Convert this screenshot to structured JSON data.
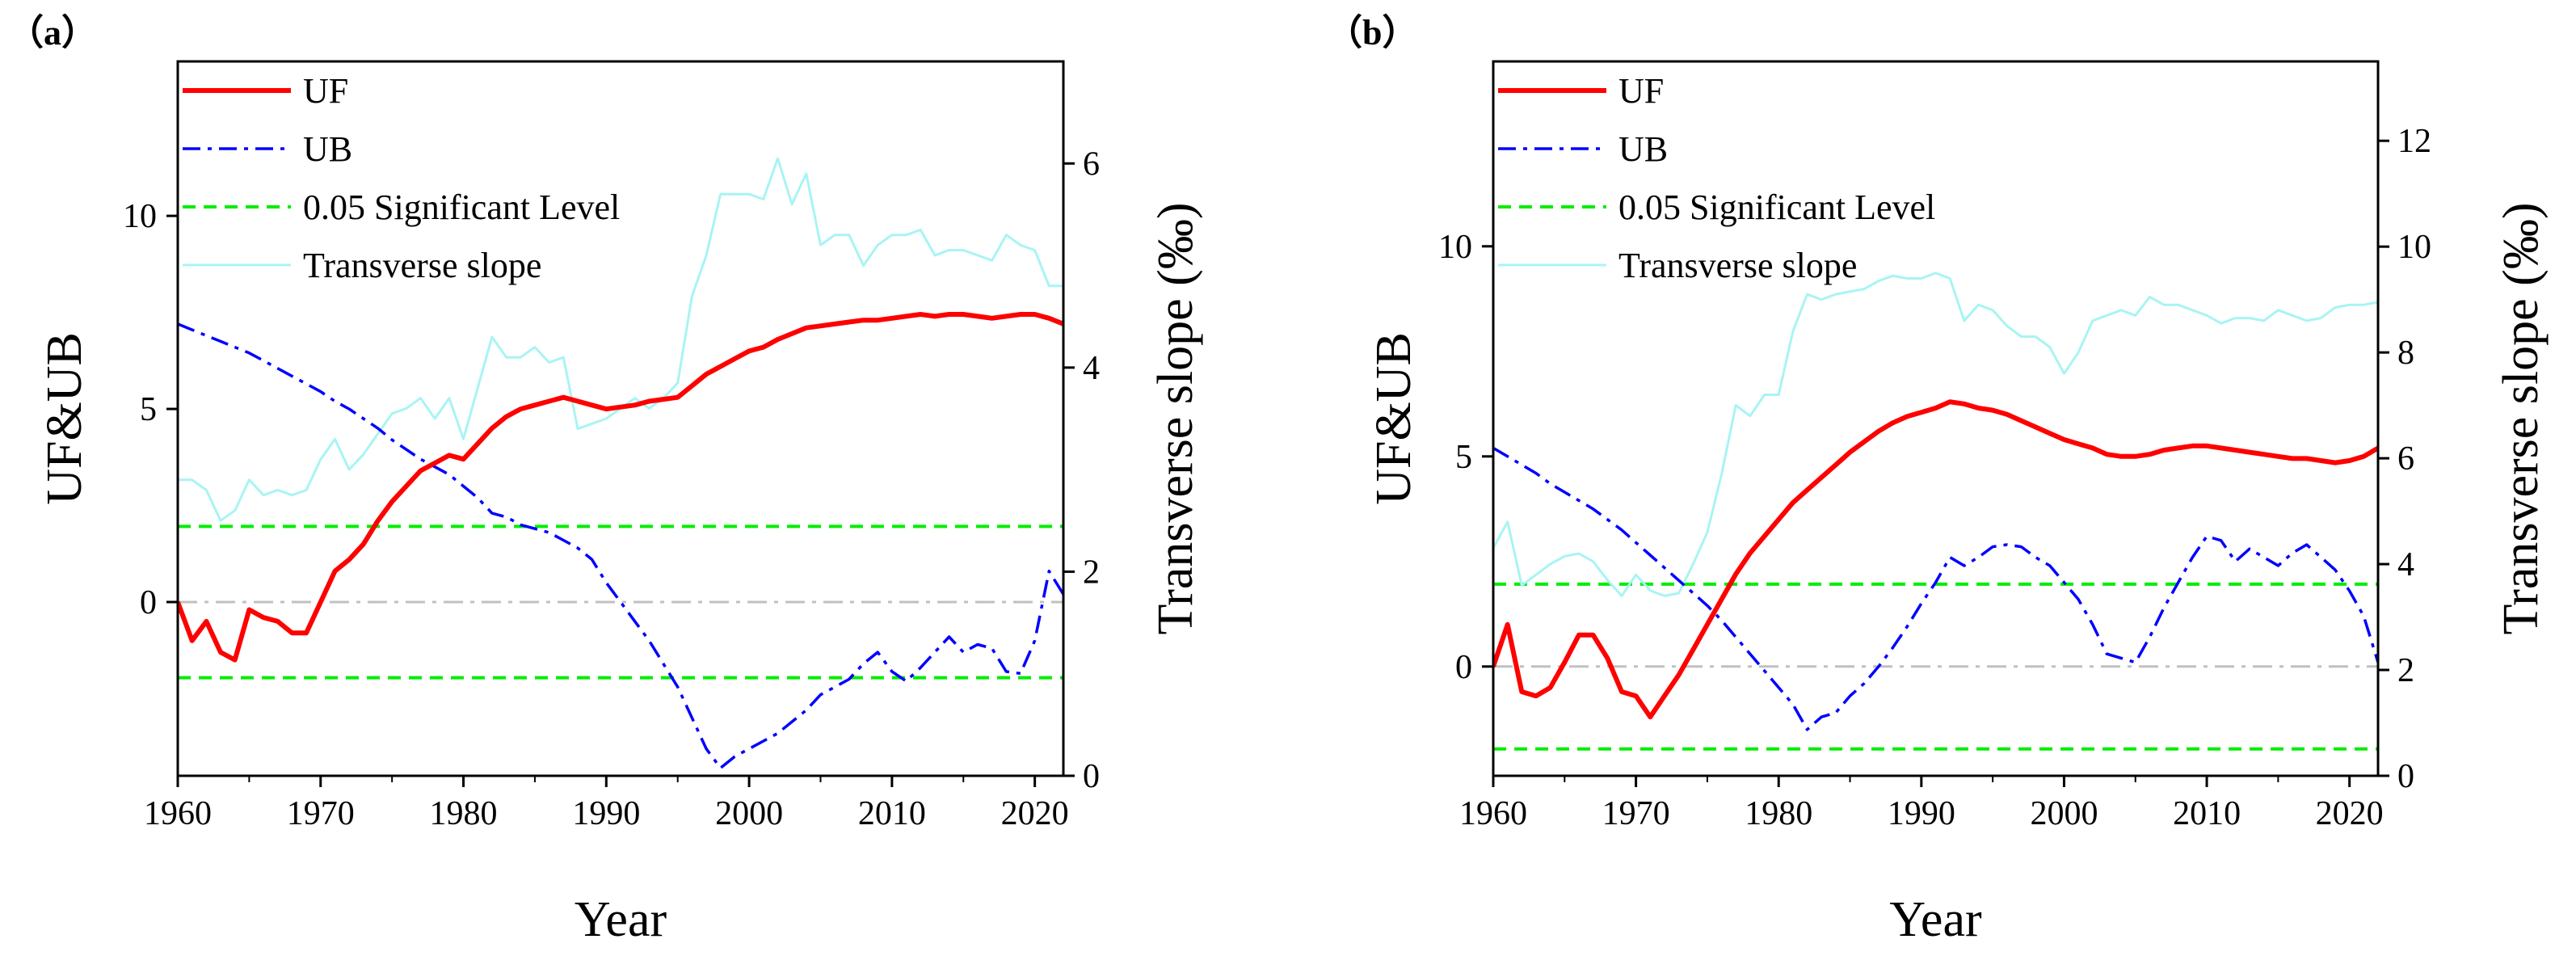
{
  "colors": {
    "uf": "#ff0000",
    "ub": "#0000ff",
    "sig": "#00ee00",
    "zero": "#c0c0c0",
    "slope": "#a8f4f4",
    "axis": "#000000"
  },
  "legend": {
    "uf": "UF",
    "ub": "UB",
    "sig": "0.05 Significant Level",
    "slope": "Transverse slope"
  },
  "chart_data": [
    {
      "type": "line",
      "panel_label": "（a）",
      "xlabel": "Year",
      "ylabel": "UF&UB",
      "y2label": "Transverse slope (‰)",
      "xlim": [
        1960,
        2022
      ],
      "ylim": [
        -4.5,
        14
      ],
      "y2lim": [
        0,
        7
      ],
      "xticks": [
        1960,
        1970,
        1980,
        1990,
        2000,
        2010,
        2020
      ],
      "yticks": [
        0,
        5,
        10
      ],
      "y2ticks": [
        0,
        2,
        4,
        6
      ],
      "significance": [
        1.96,
        -1.96
      ],
      "x": [
        1960,
        1961,
        1962,
        1963,
        1964,
        1965,
        1966,
        1967,
        1968,
        1969,
        1970,
        1971,
        1972,
        1973,
        1974,
        1975,
        1976,
        1977,
        1978,
        1979,
        1980,
        1981,
        1982,
        1983,
        1984,
        1985,
        1986,
        1987,
        1988,
        1989,
        1990,
        1991,
        1992,
        1993,
        1994,
        1995,
        1996,
        1997,
        1998,
        1999,
        2000,
        2001,
        2002,
        2003,
        2004,
        2005,
        2006,
        2007,
        2008,
        2009,
        2010,
        2011,
        2012,
        2013,
        2014,
        2015,
        2016,
        2017,
        2018,
        2019,
        2020,
        2021,
        2022
      ],
      "series": [
        {
          "name": "UF",
          "axis": "left",
          "values": [
            0,
            -1,
            -0.5,
            -1.3,
            -1.5,
            -0.2,
            -0.4,
            -0.5,
            -0.8,
            -0.8,
            0,
            0.8,
            1.1,
            1.5,
            2.1,
            2.6,
            3,
            3.4,
            3.6,
            3.8,
            3.7,
            4.1,
            4.5,
            4.8,
            5,
            5.1,
            5.2,
            5.3,
            5.2,
            5.1,
            5,
            5.05,
            5.1,
            5.2,
            5.25,
            5.3,
            5.6,
            5.9,
            6.1,
            6.3,
            6.5,
            6.6,
            6.8,
            6.95,
            7.1,
            7.15,
            7.2,
            7.25,
            7.3,
            7.3,
            7.35,
            7.4,
            7.45,
            7.4,
            7.45,
            7.45,
            7.4,
            7.35,
            7.4,
            7.45,
            7.45,
            7.35,
            7.2
          ]
        },
        {
          "name": "UB",
          "axis": "left",
          "values": [
            7.2,
            7.05,
            6.9,
            6.75,
            6.6,
            6.45,
            6.25,
            6.05,
            5.85,
            5.65,
            5.45,
            5.2,
            5,
            4.75,
            4.5,
            4.2,
            3.95,
            3.7,
            3.5,
            3.3,
            3,
            2.7,
            2.3,
            2.2,
            2,
            1.9,
            1.8,
            1.6,
            1.4,
            1.1,
            0.5,
            0,
            -0.5,
            -1,
            -1.6,
            -2.2,
            -3,
            -3.8,
            -4.3,
            -4,
            -3.8,
            -3.6,
            -3.4,
            -3.1,
            -2.8,
            -2.4,
            -2.2,
            -2,
            -1.6,
            -1.3,
            -1.8,
            -2.05,
            -1.7,
            -1.3,
            -0.9,
            -1.3,
            -1.1,
            -1.2,
            -1.8,
            -1.85,
            -1,
            0.8,
            0.2
          ]
        },
        {
          "name": "Transverse slope",
          "axis": "right",
          "values": [
            2.9,
            2.9,
            2.8,
            2.5,
            2.6,
            2.9,
            2.75,
            2.8,
            2.75,
            2.8,
            3.1,
            3.3,
            3,
            3.15,
            3.35,
            3.55,
            3.6,
            3.7,
            3.5,
            3.7,
            3.3,
            3.8,
            4.3,
            4.1,
            4.1,
            4.2,
            4.05,
            4.1,
            3.4,
            3.45,
            3.5,
            3.6,
            3.7,
            3.6,
            3.7,
            3.85,
            4.7,
            5.1,
            5.7,
            5.7,
            5.7,
            5.65,
            6.05,
            5.6,
            5.9,
            5.2,
            5.3,
            5.3,
            5,
            5.2,
            5.3,
            5.3,
            5.35,
            5.1,
            5.15,
            5.15,
            5.1,
            5.05,
            5.3,
            5.2,
            5.15,
            4.8,
            4.8
          ]
        }
      ]
    },
    {
      "type": "line",
      "panel_label": "（b）",
      "xlabel": "Year",
      "ylabel": "UF&UB",
      "y2label": "Transverse slope (‰)",
      "xlim": [
        1960,
        2022
      ],
      "ylim": [
        -2.6,
        14.4
      ],
      "y2lim": [
        0,
        13.5
      ],
      "xticks": [
        1960,
        1970,
        1980,
        1990,
        2000,
        2010,
        2020
      ],
      "yticks": [
        0,
        5,
        10
      ],
      "y2ticks": [
        0,
        2,
        4,
        6,
        8,
        10,
        12
      ],
      "significance": [
        1.96,
        -1.96
      ],
      "x": [
        1960,
        1961,
        1962,
        1963,
        1964,
        1965,
        1966,
        1967,
        1968,
        1969,
        1970,
        1971,
        1972,
        1973,
        1974,
        1975,
        1976,
        1977,
        1978,
        1979,
        1980,
        1981,
        1982,
        1983,
        1984,
        1985,
        1986,
        1987,
        1988,
        1989,
        1990,
        1991,
        1992,
        1993,
        1994,
        1995,
        1996,
        1997,
        1998,
        1999,
        2000,
        2001,
        2002,
        2003,
        2004,
        2005,
        2006,
        2007,
        2008,
        2009,
        2010,
        2011,
        2012,
        2013,
        2014,
        2015,
        2016,
        2017,
        2018,
        2019,
        2020,
        2021,
        2022
      ],
      "series": [
        {
          "name": "UF",
          "axis": "left",
          "values": [
            0,
            1,
            -0.6,
            -0.7,
            -0.5,
            0.1,
            0.75,
            0.75,
            0.2,
            -0.6,
            -0.7,
            -1.2,
            -0.7,
            -0.2,
            0.4,
            1,
            1.6,
            2.2,
            2.7,
            3.1,
            3.5,
            3.9,
            4.2,
            4.5,
            4.8,
            5.1,
            5.35,
            5.6,
            5.8,
            5.95,
            6.05,
            6.15,
            6.3,
            6.25,
            6.15,
            6.1,
            6,
            5.85,
            5.7,
            5.55,
            5.4,
            5.3,
            5.2,
            5.05,
            5,
            5,
            5.05,
            5.15,
            5.2,
            5.25,
            5.25,
            5.2,
            5.15,
            5.1,
            5.05,
            5,
            4.95,
            4.95,
            4.9,
            4.85,
            4.9,
            5,
            5.2
          ]
        },
        {
          "name": "UB",
          "axis": "left",
          "values": [
            5.2,
            5,
            4.8,
            4.6,
            4.35,
            4.15,
            3.95,
            3.75,
            3.5,
            3.25,
            2.95,
            2.65,
            2.35,
            2.05,
            1.75,
            1.45,
            1.1,
            0.7,
            0.3,
            -0.1,
            -0.5,
            -0.9,
            -1.5,
            -1.2,
            -1.1,
            -0.7,
            -0.4,
            0,
            0.45,
            0.95,
            1.5,
            2,
            2.6,
            2.4,
            2.6,
            2.85,
            2.9,
            2.85,
            2.6,
            2.4,
            2,
            1.6,
            1,
            0.3,
            0.2,
            0.1,
            0.7,
            1.4,
            2,
            2.6,
            3.1,
            3,
            2.5,
            2.8,
            2.6,
            2.4,
            2.7,
            2.9,
            2.6,
            2.3,
            1.8,
            1.2,
            0.1
          ]
        },
        {
          "name": "Transverse slope",
          "axis": "right",
          "values": [
            4.3,
            4.8,
            3.6,
            3.8,
            4,
            4.15,
            4.2,
            4.05,
            3.7,
            3.4,
            3.8,
            3.5,
            3.4,
            3.45,
            4,
            4.6,
            5.7,
            7,
            6.8,
            7.2,
            7.2,
            8.4,
            9.1,
            9,
            9.1,
            9.15,
            9.2,
            9.35,
            9.45,
            9.4,
            9.4,
            9.5,
            9.4,
            8.6,
            8.9,
            8.8,
            8.5,
            8.3,
            8.3,
            8.1,
            7.6,
            8,
            8.6,
            8.7,
            8.8,
            8.7,
            9.05,
            8.9,
            8.9,
            8.8,
            8.7,
            8.55,
            8.65,
            8.65,
            8.6,
            8.8,
            8.7,
            8.6,
            8.65,
            8.85,
            8.9,
            8.9,
            8.95
          ]
        }
      ]
    }
  ]
}
